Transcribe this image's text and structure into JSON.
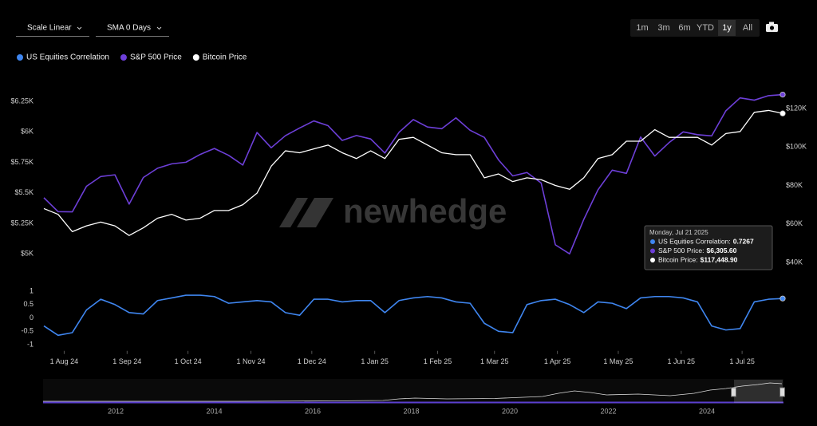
{
  "controls": {
    "scale": "Scale Linear",
    "sma": "SMA 0 Days",
    "ranges": [
      "1m",
      "3m",
      "6m",
      "YTD",
      "1y",
      "All"
    ],
    "active_range": 4
  },
  "watermark": "newhedge",
  "chart_data": [
    {
      "type": "line",
      "x": [
        "2024-07-22",
        "2024-07-29",
        "2024-08-05",
        "2024-08-12",
        "2024-08-19",
        "2024-08-26",
        "2024-09-02",
        "2024-09-09",
        "2024-09-16",
        "2024-09-23",
        "2024-09-30",
        "2024-10-07",
        "2024-10-14",
        "2024-10-21",
        "2024-10-28",
        "2024-11-04",
        "2024-11-11",
        "2024-11-18",
        "2024-11-25",
        "2024-12-02",
        "2024-12-09",
        "2024-12-16",
        "2024-12-23",
        "2024-12-30",
        "2025-01-06",
        "2025-01-13",
        "2025-01-20",
        "2025-01-27",
        "2025-02-03",
        "2025-02-10",
        "2025-02-17",
        "2025-02-24",
        "2025-03-03",
        "2025-03-10",
        "2025-03-17",
        "2025-03-24",
        "2025-03-31",
        "2025-04-07",
        "2025-04-14",
        "2025-04-21",
        "2025-04-28",
        "2025-05-05",
        "2025-05-12",
        "2025-05-19",
        "2025-05-26",
        "2025-06-02",
        "2025-06-09",
        "2025-06-16",
        "2025-06-23",
        "2025-06-30",
        "2025-07-07",
        "2025-07-14",
        "2025-07-21"
      ],
      "xlim": [
        "2024-07-22",
        "2025-07-21"
      ],
      "ylim": [
        4890,
        6460
      ],
      "yticks": [
        {
          "value": 5000,
          "label": "$5K"
        },
        {
          "value": 5250,
          "label": "$5.25K"
        },
        {
          "value": 5500,
          "label": "$5.5K"
        },
        {
          "value": 5750,
          "label": "$5.75K"
        },
        {
          "value": 6000,
          "label": "$6K"
        },
        {
          "value": 6250,
          "label": "$6.25K"
        }
      ],
      "y2lim": [
        37500,
        137000
      ],
      "y2ticks": [
        {
          "value": 40000,
          "label": "$40K"
        },
        {
          "value": 60000,
          "label": "$60K"
        },
        {
          "value": 80000,
          "label": "$80K"
        },
        {
          "value": 100000,
          "label": "$100K"
        },
        {
          "value": 120000,
          "label": "$120K"
        }
      ],
      "series": [
        {
          "name": "S&P 500 Price",
          "color": "#6d3fd8",
          "values": [
            5460,
            5346,
            5344,
            5554,
            5634,
            5648,
            5408,
            5626,
            5702,
            5738,
            5751,
            5815,
            5864,
            5808,
            5728,
            5995,
            5870,
            5969,
            6032,
            6090,
            6051,
            5930,
            5970,
            5942,
            5827,
            5997,
            6101,
            6040,
            6026,
            6115,
            6013,
            5955,
            5770,
            5639,
            5667,
            5581,
            5074,
            5000,
            5282,
            5525,
            5686,
            5660,
            5958,
            5802,
            5912,
            6000,
            5977,
            5967,
            6173,
            6279,
            6260,
            6297,
            6305.6
          ]
        },
        {
          "name": "Bitcoin Price",
          "color": "#ffffff",
          "axis": "y2",
          "values": [
            68000,
            65000,
            56000,
            59000,
            61000,
            59000,
            54000,
            58000,
            63000,
            65000,
            62000,
            63000,
            67000,
            67000,
            70000,
            76000,
            90000,
            98000,
            97000,
            99000,
            101000,
            97000,
            94000,
            98000,
            94000,
            104000,
            105000,
            101000,
            97000,
            96000,
            96000,
            84000,
            86000,
            82000,
            84000,
            83000,
            80000,
            78000,
            84000,
            94000,
            96000,
            103000,
            103000,
            109000,
            105000,
            105000,
            105000,
            101000,
            107000,
            108000,
            118000,
            119000,
            117448.9
          ]
        }
      ]
    },
    {
      "type": "line",
      "x": [
        "2024-07-22",
        "2024-07-29",
        "2024-08-05",
        "2024-08-12",
        "2024-08-19",
        "2024-08-26",
        "2024-09-02",
        "2024-09-09",
        "2024-09-16",
        "2024-09-23",
        "2024-09-30",
        "2024-10-07",
        "2024-10-14",
        "2024-10-21",
        "2024-10-28",
        "2024-11-04",
        "2024-11-11",
        "2024-11-18",
        "2024-11-25",
        "2024-12-02",
        "2024-12-09",
        "2024-12-16",
        "2024-12-23",
        "2024-12-30",
        "2025-01-06",
        "2025-01-13",
        "2025-01-20",
        "2025-01-27",
        "2025-02-03",
        "2025-02-10",
        "2025-02-17",
        "2025-02-24",
        "2025-03-03",
        "2025-03-10",
        "2025-03-17",
        "2025-03-24",
        "2025-03-31",
        "2025-04-07",
        "2025-04-14",
        "2025-04-21",
        "2025-04-28",
        "2025-05-05",
        "2025-05-12",
        "2025-05-19",
        "2025-05-26",
        "2025-06-02",
        "2025-06-09",
        "2025-06-16",
        "2025-06-23",
        "2025-06-30",
        "2025-07-07",
        "2025-07-14",
        "2025-07-21"
      ],
      "xlim": [
        "2024-07-22",
        "2025-07-21"
      ],
      "xticks": [
        {
          "value": "2024-08-01",
          "label": "1 Aug 24"
        },
        {
          "value": "2024-09-01",
          "label": "1 Sep 24"
        },
        {
          "value": "2024-10-01",
          "label": "1 Oct 24"
        },
        {
          "value": "2024-11-01",
          "label": "1 Nov 24"
        },
        {
          "value": "2024-12-01",
          "label": "1 Dec 24"
        },
        {
          "value": "2025-01-01",
          "label": "1 Jan 25"
        },
        {
          "value": "2025-02-01",
          "label": "1 Feb 25"
        },
        {
          "value": "2025-03-01",
          "label": "1 Mar 25"
        },
        {
          "value": "2025-04-01",
          "label": "1 Apr 25"
        },
        {
          "value": "2025-05-01",
          "label": "1 May 25"
        },
        {
          "value": "2025-06-01",
          "label": "1 Jun 25"
        },
        {
          "value": "2025-07-01",
          "label": "1 Jul 25"
        }
      ],
      "ylim": [
        -1.2,
        1.3
      ],
      "yticks": [
        -1,
        -0.5,
        0,
        0.5,
        1
      ],
      "series": [
        {
          "name": "US Equities Correlation",
          "color": "#3f86f0",
          "values": [
            -0.3,
            -0.65,
            -0.55,
            0.3,
            0.7,
            0.5,
            0.2,
            0.15,
            0.65,
            0.75,
            0.85,
            0.85,
            0.8,
            0.55,
            0.6,
            0.65,
            0.6,
            0.2,
            0.1,
            0.7,
            0.7,
            0.6,
            0.65,
            0.65,
            0.2,
            0.65,
            0.75,
            0.8,
            0.75,
            0.6,
            0.55,
            -0.2,
            -0.5,
            -0.55,
            0.5,
            0.65,
            0.7,
            0.5,
            0.2,
            0.6,
            0.55,
            0.35,
            0.75,
            0.8,
            0.8,
            0.75,
            0.6,
            -0.3,
            -0.45,
            -0.4,
            0.6,
            0.7,
            0.7267
          ]
        }
      ]
    }
  ],
  "tooltip": {
    "date": "Monday, Jul 21 2025",
    "items": [
      {
        "label": "US Equities Correlation:",
        "value": "0.7267"
      },
      {
        "label": "S&P 500 Price:",
        "value": "$6,305.60"
      },
      {
        "label": "Bitcoin Price:",
        "value": "$117,448.90"
      }
    ]
  },
  "navigator": {
    "years": [
      2012,
      2014,
      2016,
      2018,
      2020,
      2022,
      2024
    ]
  }
}
